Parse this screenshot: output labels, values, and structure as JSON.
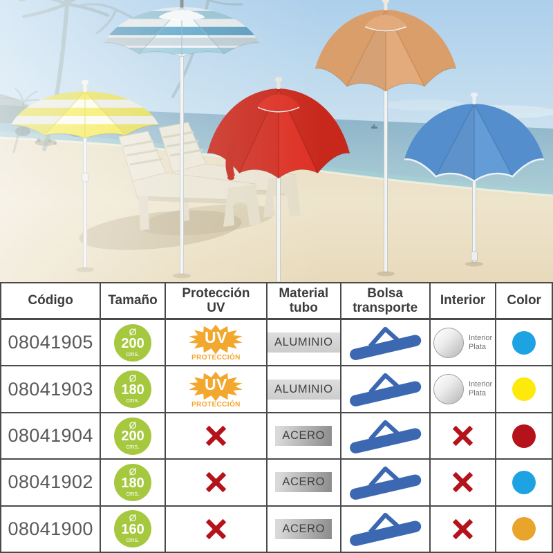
{
  "photo": {
    "description": "Beach with palm trees, two sun loungers and five parasols on white poles",
    "umbrellas": [
      {
        "name": "striped-blue",
        "label": "blue and white striped parasol",
        "colors": {
          "base": "#f3f7f8",
          "stripe": "#93c7da",
          "deep": "#4f9dc6",
          "skirt": "#c4d3da",
          "rib": "#85afc0",
          "finial": "#75797c"
        }
      },
      {
        "name": "striped-yellow",
        "label": "yellow and white striped parasol",
        "colors": {
          "base": "#f4e93a",
          "stripe": "#fbfaf0",
          "rib": "#d8c81d",
          "finial": "#f4f1e4"
        }
      },
      {
        "name": "orange",
        "label": "orange parasol",
        "colors": {
          "base": "#e2a675",
          "dark": "#cd8b50",
          "rib": "#bf7f46",
          "finial": "#efe7da"
        }
      },
      {
        "name": "red",
        "label": "red parasol",
        "colors": {
          "base": "#dc2517",
          "dark": "#b01408",
          "rib": "#9c1208",
          "finial": "#e8e4da",
          "strap": "#c21a0e"
        }
      },
      {
        "name": "blue",
        "label": "blue parasol",
        "colors": {
          "base": "#5b97d5",
          "dark": "#3e7ac0",
          "rib": "#3a6fae",
          "edge": "#edf3f9",
          "finial": "#e9eff6"
        }
      }
    ]
  },
  "table": {
    "headers": [
      "Código",
      "Tamaño",
      "Protección\nUV",
      "Material\ntubo",
      "Bolsa\ntransporte",
      "Interior",
      "Color"
    ],
    "labels": {
      "diameter": "Ø",
      "unit": "cms.",
      "uv": "UV",
      "uv_sub": "PROTECCIÓN",
      "interior1": "Interior",
      "interior2": "Plata"
    },
    "icon_colors": {
      "badge_green": "#a5c83e",
      "uv_orange": "#f2a72e",
      "uv_text": "#f5a425",
      "bag_blue": "#3b68b1",
      "cross_red": "#b5131b"
    },
    "rows": [
      {
        "code": "08041905",
        "size": "200",
        "uv": true,
        "material": "ALUMINIO",
        "interior_silver": true,
        "color": "#1ea3e2",
        "color_name": "light blue"
      },
      {
        "code": "08041903",
        "size": "180",
        "uv": true,
        "material": "ALUMINIO",
        "interior_silver": true,
        "color": "#fde90a",
        "color_name": "yellow"
      },
      {
        "code": "08041904",
        "size": "200",
        "uv": false,
        "material": "ACERO",
        "interior_silver": false,
        "color": "#b5121c",
        "color_name": "dark red"
      },
      {
        "code": "08041902",
        "size": "180",
        "uv": false,
        "material": "ACERO",
        "interior_silver": false,
        "color": "#1ea3e2",
        "color_name": "light blue"
      },
      {
        "code": "08041900",
        "size": "160",
        "uv": false,
        "material": "ACERO",
        "interior_silver": false,
        "color": "#e9a42c",
        "color_name": "orange"
      }
    ]
  }
}
